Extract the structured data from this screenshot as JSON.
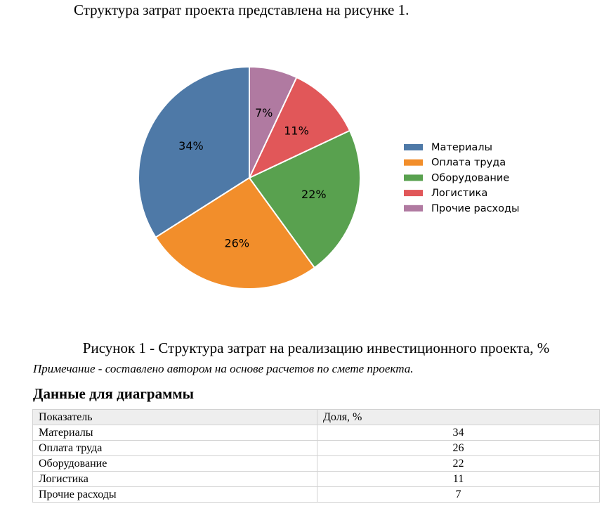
{
  "intro_text": "Структура затрат проекта представлена на рисунке 1.",
  "chart_data": {
    "type": "pie",
    "categories": [
      "Материалы",
      "Оплата труда",
      "Оборудование",
      "Логистика",
      "Прочие расходы"
    ],
    "values": [
      34,
      26,
      22,
      11,
      7
    ],
    "labels": [
      "34%",
      "26%",
      "22%",
      "11%",
      "7%"
    ],
    "colors": [
      "#4e79a7",
      "#f28e2b",
      "#59a14f",
      "#e15759",
      "#b07aa1"
    ],
    "legend_position": "right",
    "start": "top",
    "direction": "counterclockwise"
  },
  "caption": "Рисунок 1 - Структура затрат на реализацию инвестиционного проекта, %",
  "note": "Примечание - составлено автором на основе расчетов по смете проекта.",
  "table_title": "Данные для диаграммы",
  "table": {
    "headers": [
      "Показатель",
      "Доля, %"
    ],
    "rows": [
      [
        "Материалы",
        "34"
      ],
      [
        "Оплата труда",
        "26"
      ],
      [
        "Оборудование",
        "22"
      ],
      [
        "Логистика",
        "11"
      ],
      [
        "Прочие расходы",
        "7"
      ]
    ]
  }
}
